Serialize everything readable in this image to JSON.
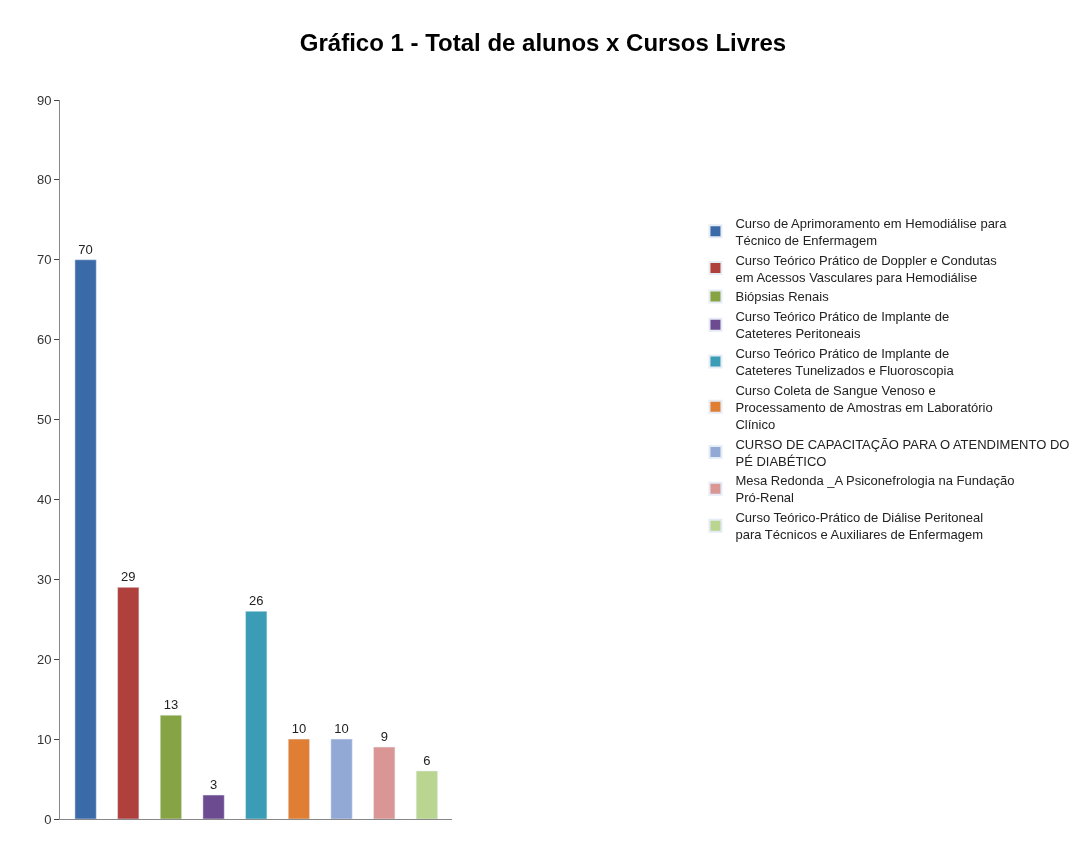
{
  "chart_data": {
    "type": "bar",
    "title": "Gráfico 1 - Total de alunos x Cursos Livres",
    "categories": [
      null,
      null,
      null,
      null,
      null,
      null,
      null,
      null,
      null
    ],
    "series": [
      {
        "name": "Curso de Aprimoramento em Hemodiálise para Técnico de Enfermagem",
        "color": "#3b6aa8",
        "values": [
          70,
          null,
          null,
          null,
          null,
          null,
          null,
          null,
          null
        ]
      },
      {
        "name": "Curso Teórico Prático de Doppler e Condutas em Acessos Vasculares para Hemodiálise",
        "color": "#b0403c",
        "values": [
          null,
          29,
          null,
          null,
          null,
          null,
          null,
          null,
          null
        ]
      },
      {
        "name": "Biópsias Renais",
        "color": "#86a443",
        "values": [
          null,
          null,
          13,
          null,
          null,
          null,
          null,
          null,
          null
        ]
      },
      {
        "name": "Curso Teórico Prático de Implante de Cateteres Peritoneais",
        "color": "#6d4b90",
        "values": [
          null,
          null,
          null,
          3,
          null,
          null,
          null,
          null,
          null
        ]
      },
      {
        "name": "Curso Teórico Prático de Implante de Cateteres Tunelizados e Fluoroscopia",
        "color": "#3a9db5",
        "values": [
          null,
          null,
          null,
          null,
          26,
          null,
          null,
          null,
          null
        ]
      },
      {
        "name": "Curso Coleta de Sangue Venoso e Processamento de Amostras em Laboratório Clínico",
        "color": "#e07f34",
        "values": [
          null,
          null,
          null,
          null,
          null,
          10,
          null,
          null,
          null
        ]
      },
      {
        "name": "CURSO DE CAPACITAÇÃO PARA O ATENDIMENTO DO PÉ DIABÉTICO",
        "color": "#92a9d6",
        "values": [
          null,
          null,
          null,
          null,
          null,
          null,
          10,
          null,
          null
        ]
      },
      {
        "name": "Mesa Redonda _A Psiconefrologia na Fundação Pró-Renal",
        "color": "#d99694",
        "values": [
          null,
          null,
          null,
          null,
          null,
          null,
          null,
          9,
          null
        ]
      },
      {
        "name": "Curso Teórico-Prático de Diálise Peritoneal para Técnicos e Auxiliares de Enfermagem",
        "color": "#b9d58f",
        "values": [
          null,
          null,
          null,
          null,
          null,
          null,
          null,
          null,
          6
        ]
      }
    ],
    "ylim": [
      0,
      90
    ],
    "yticks": [
      0,
      10,
      20,
      30,
      40,
      50,
      60,
      70,
      80,
      90
    ],
    "data_labels": true,
    "legend": "right"
  }
}
